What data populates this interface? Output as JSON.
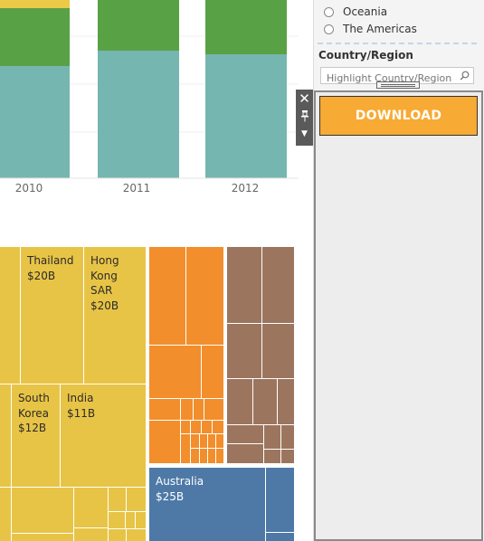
{
  "chart_top": {
    "x_ticks": [
      "2010",
      "2011",
      "2012"
    ],
    "colors": {
      "teal": "#76b6b0",
      "green": "#59a145",
      "yellow": "#edc948"
    }
  },
  "treemap": {
    "colors": {
      "yellow": "#e8c446",
      "orange": "#f28e2b",
      "brown": "#9c755f",
      "blue": "#4e79a7"
    },
    "labels": {
      "thailand": {
        "name": "Thailand",
        "value": "$20B"
      },
      "hongkong": {
        "name_l1": "Hong",
        "name_l2": "Kong",
        "name_l3": "SAR",
        "value": "$20B"
      },
      "southkorea": {
        "name_l1": "South",
        "name_l2": "Korea",
        "value": "$12B"
      },
      "india": {
        "name": "India",
        "value": "$11B"
      },
      "australia": {
        "name": "Australia",
        "value": "$25B"
      }
    }
  },
  "panel": {
    "region_options": [
      "Oceania",
      "The Americas"
    ],
    "country_filter_title": "Country/Region",
    "search_placeholder": "Highlight Country/Region",
    "download_label": "DOWNLOAD"
  }
}
